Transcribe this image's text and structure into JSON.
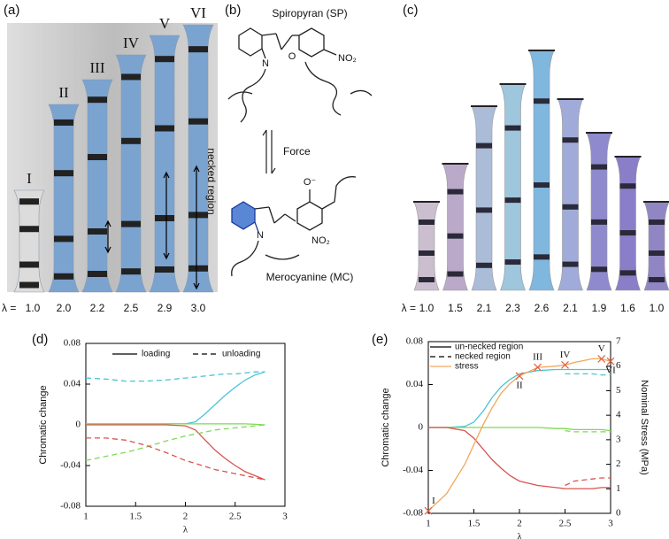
{
  "panels": {
    "a": {
      "label": "(a)",
      "stage_labels": [
        "I",
        "II",
        "III",
        "IV",
        "V",
        "VI"
      ],
      "lambda_label": "λ =",
      "lambdas": [
        "1.0",
        "2.0",
        "2.2",
        "2.5",
        "2.9",
        "3.0"
      ],
      "annotation": "necked region"
    },
    "b": {
      "label": "(b)",
      "top_name": "Spiropyran (SP)",
      "force": "Force",
      "bottom_name": "Merocyanine (MC)",
      "atoms": [
        "N",
        "O",
        "NO₂",
        "N",
        "O⁻",
        "NO₂"
      ]
    },
    "c": {
      "label": "(c)",
      "lambda_label": "λ =",
      "lambdas": [
        "1.0",
        "1.5",
        "2.1",
        "2.3",
        "2.6",
        "2.1",
        "1.9",
        "1.6",
        "1.0"
      ]
    },
    "d": {
      "label": "(d)"
    },
    "e": {
      "label": "(e)"
    }
  },
  "chart_data": [
    {
      "type": "line",
      "xlabel": "λ",
      "ylabel": "Chromatic change",
      "x": [
        1,
        1.2,
        1.4,
        1.6,
        1.8,
        2,
        2.1,
        2.2,
        2.3,
        2.4,
        2.5,
        2.6,
        2.7,
        2.8
      ],
      "xlim": [
        1,
        3
      ],
      "xticks": [
        1,
        1.5,
        2,
        2.5,
        3
      ],
      "ylim": [
        -0.08,
        0.08
      ],
      "yticks": [
        -0.08,
        -0.04,
        0,
        0.04,
        0.08
      ],
      "legend_position": "top",
      "legend": [
        {
          "label": "loading",
          "dash": "solid",
          "color": "#000000"
        },
        {
          "label": "unloading",
          "dash": "dashed",
          "color": "#000000"
        }
      ],
      "series": [
        {
          "color": "#4cc3d6",
          "dash": "solid",
          "values": [
            0.001,
            0.001,
            0.001,
            0.001,
            0.001,
            0.001,
            0.003,
            0.011,
            0.02,
            0.029,
            0.037,
            0.044,
            0.049,
            0.052
          ]
        },
        {
          "color": "#7ed957",
          "dash": "solid",
          "values": [
            0.001,
            0.001,
            0.001,
            0.001,
            0.001,
            0.001,
            0.001,
            0.001,
            0.001,
            0.001,
            0.001,
            0.001,
            0.0005,
            0
          ]
        },
        {
          "color": "#d9534f",
          "dash": "solid",
          "values": [
            0,
            0,
            0,
            0,
            0,
            -0.001,
            -0.005,
            -0.015,
            -0.025,
            -0.033,
            -0.04,
            -0.046,
            -0.05,
            -0.054
          ]
        },
        {
          "color": "#4cc3d6",
          "dash": "dashed",
          "values": [
            0.046,
            0.045,
            0.043,
            0.043,
            0.044,
            0.046,
            0.047,
            0.048,
            0.049,
            0.05,
            0.05,
            0.051,
            0.052,
            0.052
          ]
        },
        {
          "color": "#7ed957",
          "dash": "dashed",
          "values": [
            -0.035,
            -0.031,
            -0.027,
            -0.022,
            -0.016,
            -0.011,
            -0.009,
            -0.007,
            -0.005,
            -0.004,
            -0.003,
            -0.002,
            -0.001,
            0
          ]
        },
        {
          "color": "#d9534f",
          "dash": "dashed",
          "values": [
            -0.013,
            -0.013,
            -0.015,
            -0.02,
            -0.027,
            -0.035,
            -0.038,
            -0.041,
            -0.044,
            -0.046,
            -0.048,
            -0.05,
            -0.052,
            -0.054
          ]
        }
      ]
    },
    {
      "type": "line",
      "xlabel": "λ",
      "ylabel": "Chromatic change",
      "y2label": "Nominal Stress (MPa)",
      "x": [
        1,
        1.2,
        1.4,
        1.5,
        1.6,
        1.7,
        1.8,
        1.9,
        2,
        2.2,
        2.4,
        2.5,
        2.6,
        2.8,
        2.9,
        3
      ],
      "xlim": [
        1,
        3
      ],
      "xticks": [
        1,
        1.5,
        2,
        2.5,
        3
      ],
      "ylim": [
        -0.08,
        0.08
      ],
      "yticks": [
        -0.08,
        -0.04,
        0,
        0.04,
        0.08
      ],
      "y2lim": [
        0,
        7
      ],
      "y2ticks": [
        0,
        1,
        2,
        3,
        4,
        5,
        6,
        7
      ],
      "legend_position": "top-left",
      "legend": [
        {
          "label": "un-necked region",
          "dash": "solid",
          "color": "#000000"
        },
        {
          "label": "necked region",
          "dash": "dashed",
          "color": "#000000"
        },
        {
          "label": "stress",
          "dash": "solid",
          "color": "#f2a65a"
        }
      ],
      "series": [
        {
          "color": "#4cc3d6",
          "dash": "solid",
          "values": [
            0,
            0,
            0.001,
            0.005,
            0.015,
            0.028,
            0.038,
            0.045,
            0.05,
            0.053,
            0.054,
            0.054,
            0.054,
            0.054,
            0.054,
            0.054
          ]
        },
        {
          "color": "#7ed957",
          "dash": "solid",
          "values": [
            0,
            0,
            0,
            0,
            0,
            0,
            0,
            0,
            0,
            0,
            -0.001,
            -0.001,
            -0.002,
            -0.002,
            -0.002,
            -0.003
          ]
        },
        {
          "color": "#d9534f",
          "dash": "solid",
          "values": [
            0,
            0,
            -0.003,
            -0.01,
            -0.02,
            -0.03,
            -0.038,
            -0.045,
            -0.05,
            -0.054,
            -0.056,
            -0.057,
            -0.057,
            -0.057,
            -0.056,
            -0.056
          ]
        },
        {
          "color": "#4cc3d6",
          "dash": "dashed",
          "values": [
            null,
            null,
            null,
            null,
            null,
            null,
            null,
            null,
            null,
            null,
            null,
            0.05,
            0.05,
            0.05,
            0.049,
            0.049
          ]
        },
        {
          "color": "#7ed957",
          "dash": "dashed",
          "values": [
            null,
            null,
            null,
            null,
            null,
            null,
            null,
            null,
            null,
            null,
            null,
            -0.003,
            -0.004,
            -0.004,
            -0.004,
            -0.004
          ]
        },
        {
          "color": "#d9534f",
          "dash": "dashed",
          "values": [
            null,
            null,
            null,
            null,
            null,
            null,
            null,
            null,
            null,
            null,
            null,
            -0.054,
            -0.05,
            -0.048,
            -0.047,
            -0.047
          ]
        },
        {
          "color": "#f2a65a",
          "dash": "solid",
          "axis": "y2",
          "values": [
            0.1,
            0.8,
            2.0,
            2.8,
            3.6,
            4.3,
            4.9,
            5.3,
            5.6,
            5.95,
            6.0,
            6.05,
            6.15,
            6.3,
            6.3,
            6.2
          ]
        }
      ],
      "markers": {
        "color": "#e06040",
        "x": [
          1,
          2,
          2.2,
          2.5,
          2.9,
          3
        ],
        "values": [
          0.1,
          5.6,
          5.95,
          6.05,
          6.3,
          6.2
        ],
        "labels": [
          "I",
          "II",
          "III",
          "IV",
          "V",
          "VI"
        ]
      }
    }
  ]
}
